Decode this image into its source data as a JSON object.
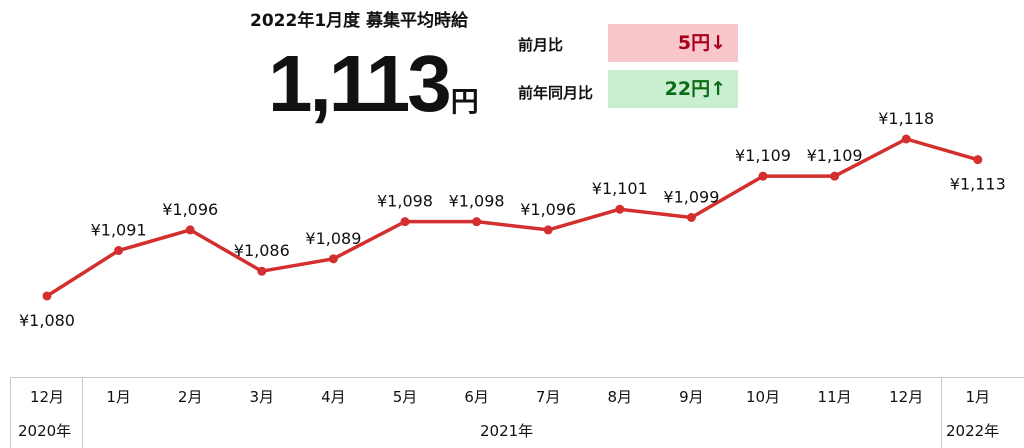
{
  "header": {
    "title": "2022年1月度 募集平均時給",
    "value": "1,113",
    "unit": "円"
  },
  "comparisons": [
    {
      "label": "前月比",
      "value": "5円↓",
      "color": "#f8c6cb"
    },
    {
      "label": "前年同月比",
      "value": "22円↑",
      "color": "#c9eed0"
    }
  ],
  "chart_data": {
    "type": "line",
    "categories": [
      "12月",
      "1月",
      "2月",
      "3月",
      "4月",
      "5月",
      "6月",
      "7月",
      "8月",
      "9月",
      "10月",
      "11月",
      "12月",
      "1月"
    ],
    "year_groups": [
      "2020年",
      "2021年",
      "2022年"
    ],
    "values": [
      1080,
      1091,
      1096,
      1086,
      1089,
      1098,
      1098,
      1096,
      1101,
      1099,
      1109,
      1109,
      1118,
      1113
    ],
    "labels": [
      "¥1,080",
      "¥1,091",
      "¥1,096",
      "¥1,086",
      "¥1,089",
      "¥1,098",
      "¥1,098",
      "¥1,096",
      "¥1,101",
      "¥1,099",
      "¥1,109",
      "¥1,109",
      "¥1,118",
      "¥1,113"
    ],
    "line_color": "#d32f2f"
  }
}
